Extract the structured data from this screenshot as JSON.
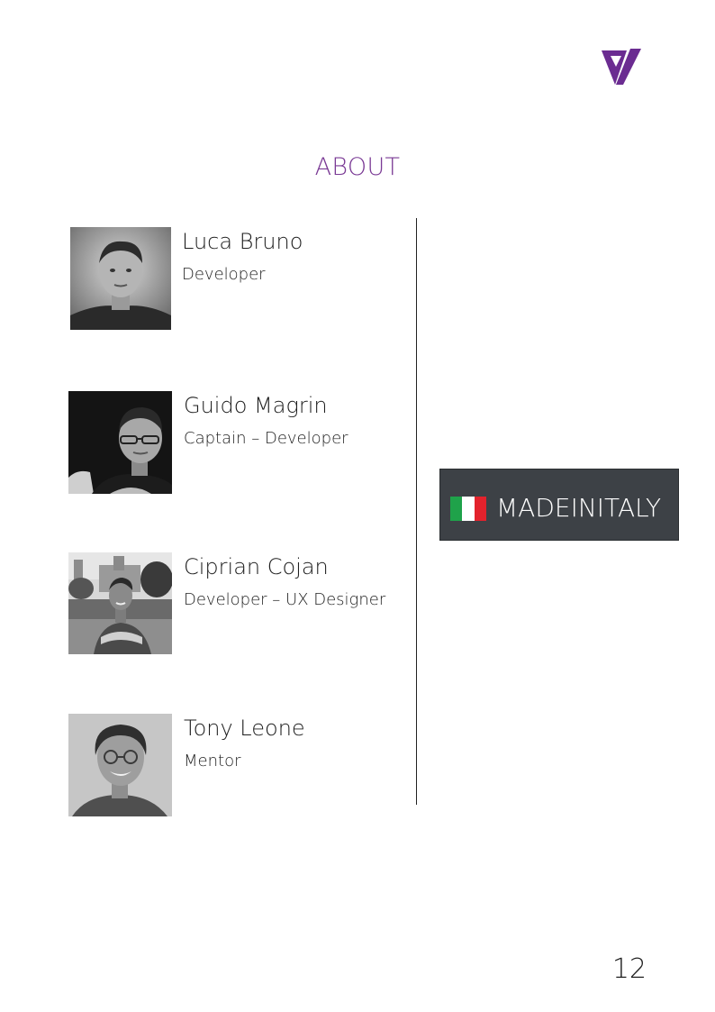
{
  "page": {
    "title": "ABOUT",
    "number": "12"
  },
  "logo": {
    "icon": "brand-logo-icon",
    "color": "#6b2c91"
  },
  "team": [
    {
      "name": "Luca Bruno",
      "role": "Developer"
    },
    {
      "name": "Guido Magrin",
      "role": "Captain – Developer"
    },
    {
      "name": "Ciprian Cojan",
      "role": "Developer – UX Designer"
    },
    {
      "name": "Tony Leone",
      "role": "Mentor"
    }
  ],
  "badge": {
    "text": "MADEINITALY",
    "flag_colors": [
      "#1fa24a",
      "#ffffff",
      "#e3222c"
    ],
    "background": "#3d4146"
  },
  "colors": {
    "accent": "#7a3a95",
    "text": "#1e1e1e"
  }
}
